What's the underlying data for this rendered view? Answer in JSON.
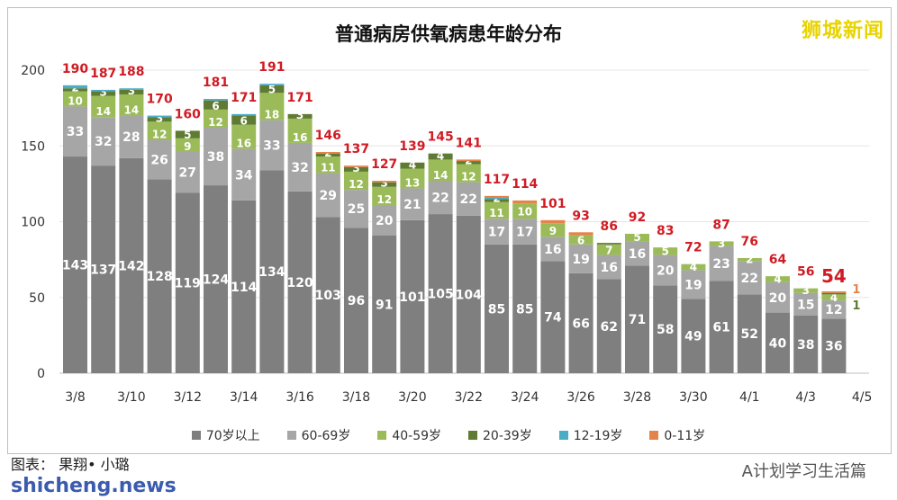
{
  "chart_data": {
    "type": "bar",
    "stacked": true,
    "title": "普通病房供氧病患年龄分布",
    "categories": [
      "3/8",
      "3/9",
      "3/10",
      "3/11",
      "3/12",
      "3/13",
      "3/14",
      "3/15",
      "3/16",
      "3/17",
      "3/18",
      "3/19",
      "3/20",
      "3/21",
      "3/22",
      "3/23",
      "3/24",
      "3/25",
      "3/26",
      "3/27",
      "3/28",
      "3/29",
      "3/30",
      "3/31",
      "4/1",
      "4/2",
      "4/3",
      "4/4"
    ],
    "x_tick_labels": [
      "3/8",
      "3/10",
      "3/12",
      "3/14",
      "3/16",
      "3/18",
      "3/20",
      "3/22",
      "3/24",
      "3/26",
      "3/28",
      "3/30",
      "4/1",
      "4/3",
      "4/5"
    ],
    "ylim": [
      0,
      200
    ],
    "y_ticks": [
      0,
      50,
      100,
      150,
      200
    ],
    "grid": true,
    "legend_position": "bottom",
    "series": [
      {
        "name": "70岁以上",
        "color": "#7f7f7f",
        "values": [
          143,
          137,
          142,
          128,
          119,
          124,
          114,
          134,
          120,
          103,
          96,
          91,
          101,
          105,
          104,
          85,
          85,
          74,
          66,
          62,
          71,
          58,
          49,
          61,
          52,
          40,
          38,
          36
        ]
      },
      {
        "name": "60-69岁",
        "color": "#a6a6a6",
        "values": [
          33,
          32,
          28,
          26,
          27,
          38,
          34,
          33,
          32,
          29,
          25,
          20,
          21,
          22,
          22,
          17,
          17,
          16,
          19,
          16,
          16,
          20,
          19,
          23,
          22,
          20,
          15,
          12
        ]
      },
      {
        "name": "40-59岁",
        "color": "#9bbb59",
        "values": [
          10,
          14,
          14,
          12,
          9,
          12,
          16,
          18,
          16,
          11,
          12,
          12,
          13,
          14,
          12,
          11,
          10,
          9,
          6,
          7,
          5,
          5,
          4,
          3,
          2,
          4,
          3,
          4
        ]
      },
      {
        "name": "20-39岁",
        "color": "#5f7a32",
        "values": [
          2,
          3,
          3,
          3,
          5,
          6,
          6,
          5,
          3,
          2,
          3,
          3,
          4,
          4,
          2,
          2,
          0,
          0,
          0,
          1,
          0,
          0,
          0,
          0,
          0,
          0,
          0,
          1
        ]
      },
      {
        "name": "12-19岁",
        "color": "#4bacc6",
        "values": [
          2,
          1,
          1,
          1,
          0,
          1,
          1,
          1,
          0,
          0,
          0,
          0,
          0,
          0,
          0,
          1,
          0,
          0,
          0,
          0,
          0,
          0,
          0,
          0,
          0,
          0,
          0,
          0
        ]
      },
      {
        "name": "0-11岁",
        "color": "#e5844a",
        "values": [
          0,
          0,
          0,
          0,
          0,
          0,
          0,
          0,
          0,
          1,
          1,
          1,
          0,
          0,
          1,
          1,
          2,
          2,
          2,
          0,
          0,
          0,
          0,
          0,
          0,
          0,
          0,
          1
        ]
      }
    ],
    "totals": [
      190,
      187,
      188,
      170,
      160,
      181,
      171,
      191,
      171,
      146,
      137,
      127,
      139,
      145,
      141,
      117,
      114,
      101,
      93,
      86,
      92,
      83,
      72,
      87,
      76,
      64,
      56,
      54
    ],
    "last_bar_side_labels": [
      {
        "value": "1",
        "color": "#e5844a"
      },
      {
        "value": "1",
        "color": "#5f7a32"
      }
    ]
  },
  "watermark": "狮城新闻",
  "credit": "图表： 果翔• 小璐",
  "site": "shicheng.news",
  "wechat": "A计划学习生活篇"
}
